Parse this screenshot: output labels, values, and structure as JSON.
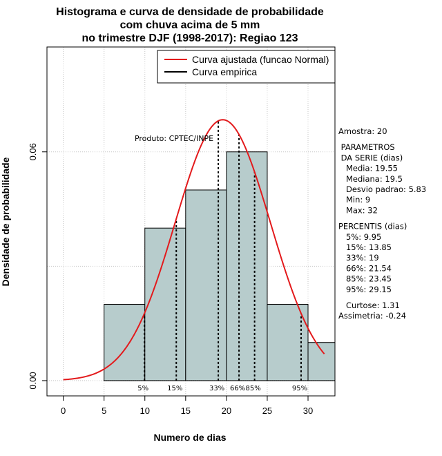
{
  "chart_data": {
    "type": "bar",
    "title": [
      "Histograma e curva de densidade de probabilidade",
      "com chuva acima de 5 mm",
      "no trimestre DJF (1998-2017): Regiao 123"
    ],
    "xlabel": "Numero de dias",
    "ylabel": "Densidade de probabilidade",
    "xlim": [
      -2,
      33.3
    ],
    "ylim": [
      -0.004,
      0.0875
    ],
    "x_ticks": [
      0,
      5,
      10,
      15,
      20,
      25,
      30
    ],
    "y_ticks": [
      0.0,
      0.06
    ],
    "y_tick_labels": [
      "0.00",
      "0.06"
    ],
    "grid": true,
    "bins": [
      {
        "start": 5,
        "end": 10,
        "density": 0.02
      },
      {
        "start": 10,
        "end": 15,
        "density": 0.04
      },
      {
        "start": 15,
        "end": 20,
        "density": 0.05
      },
      {
        "start": 20,
        "end": 25,
        "density": 0.06
      },
      {
        "start": 25,
        "end": 30,
        "density": 0.02
      },
      {
        "start": 30,
        "end": 33.3,
        "density": 0.01
      }
    ],
    "bar_color": "#b7cccc",
    "fitted_curve": {
      "name": "Curva ajustada (funcao Normal)",
      "mean": 19.55,
      "sd": 5.83,
      "x_range": [
        0,
        32
      ],
      "color": "#e31a1c"
    },
    "empirical_curve": {
      "name": "Curva empirica",
      "color": "#000000"
    },
    "legend": {
      "placement": "top-right",
      "entries": [
        "Curva ajustada (funcao Normal)",
        "Curva empirica"
      ]
    },
    "percentiles": [
      {
        "label": "5%",
        "x": 9.95
      },
      {
        "label": "15%",
        "x": 13.85
      },
      {
        "label": "33%",
        "x": 19
      },
      {
        "label": "66%",
        "x": 21.54
      },
      {
        "label": "85%",
        "x": 23.45
      },
      {
        "label": "95%",
        "x": 29.15
      }
    ],
    "annotations": {
      "product": "Produto: CPTEC/INPE",
      "stats_lines": [
        "Amostra: 20",
        "",
        " PARAMETROS",
        " DA SERIE (dias)",
        "   Media: 19.55",
        "   Mediana: 19.5",
        "   Desvio padrao: 5.83",
        "   Min: 9",
        "   Max: 32",
        "",
        "PERCENTIS (dias)",
        "   5%: 9.95",
        "   15%: 13.85",
        "   33%: 19",
        "   66%: 21.54",
        "   85%: 23.45",
        "   95%: 29.15",
        "",
        "   Curtose: 1.31",
        "Assimetria: -0.24"
      ]
    }
  }
}
